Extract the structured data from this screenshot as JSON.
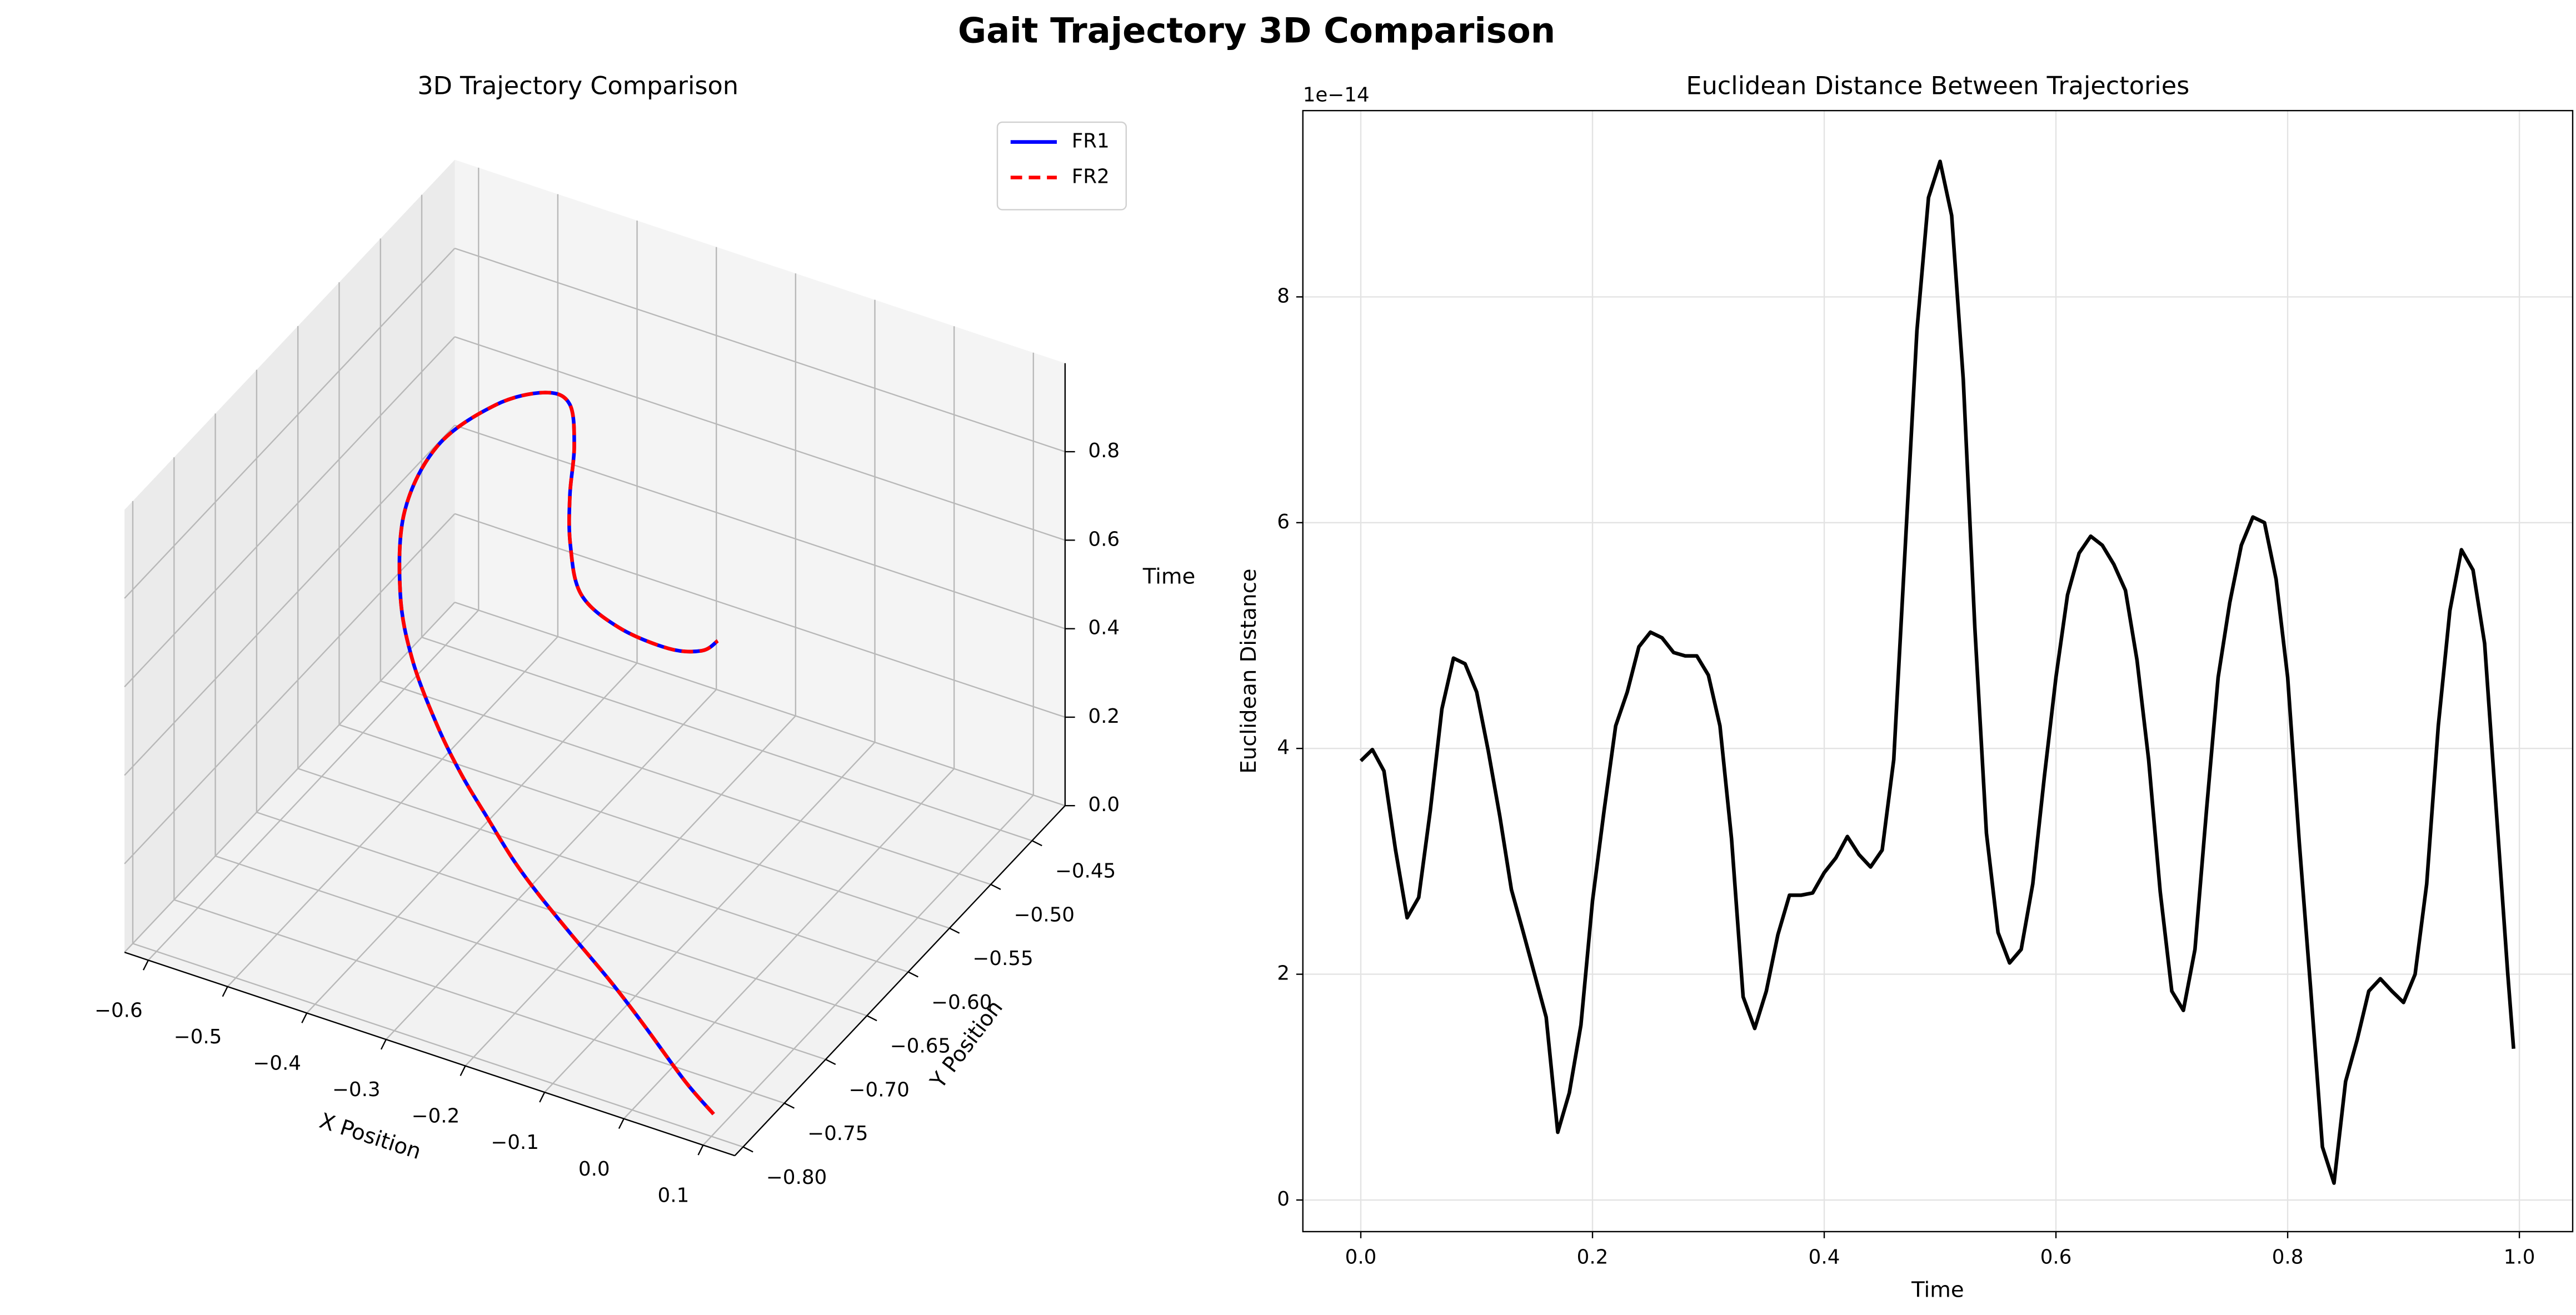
{
  "title": "Gait Trajectory 3D Comparison",
  "chart_data": [
    {
      "type": "line3d",
      "title": "3D Trajectory Comparison",
      "xlabel": "X Position",
      "ylabel": "Y Position",
      "zlabel": "Time",
      "xlim": [
        -0.63,
        0.14
      ],
      "ylim": [
        -0.81,
        -0.41
      ],
      "zlim": [
        0,
        1
      ],
      "xticks": [
        {
          "value": -0.6,
          "label": "−0.6"
        },
        {
          "value": -0.5,
          "label": "−0.5"
        },
        {
          "value": -0.4,
          "label": "−0.4"
        },
        {
          "value": -0.3,
          "label": "−0.3"
        },
        {
          "value": -0.2,
          "label": "−0.2"
        },
        {
          "value": -0.1,
          "label": "−0.1"
        },
        {
          "value": 0,
          "label": "0.0"
        },
        0.1
      ],
      "yticks": [
        {
          "value": -0.8,
          "label": "−0.80"
        },
        {
          "value": -0.75,
          "label": "−0.75"
        },
        {
          "value": -0.7,
          "label": "−0.70"
        },
        {
          "value": -0.65,
          "label": "−0.65"
        },
        {
          "value": -0.6,
          "label": "−0.60"
        },
        {
          "value": -0.55,
          "label": "−0.55"
        },
        {
          "value": -0.5,
          "label": "−0.50"
        },
        {
          "value": -0.45,
          "label": "−0.45"
        }
      ],
      "zticks": [
        {
          "value": 0,
          "label": "0.0"
        },
        0.2,
        0.4,
        0.6,
        0.8
      ],
      "grid": true,
      "legend": "upper right",
      "series": [
        {
          "name": "FR1",
          "color": "#0000ff",
          "linestyle": "solid",
          "x": [
            0.082,
            0.042,
            -0.034,
            -0.086,
            -0.154,
            -0.206,
            -0.243,
            -0.287,
            -0.332,
            -0.384,
            -0.451,
            -0.506,
            -0.56,
            -0.571,
            -0.536,
            -0.483,
            -0.432,
            -0.373,
            -0.316,
            -0.254,
            -0.182,
            -0.099,
            -0.015,
            0.035,
            0.058
          ],
          "y": [
            -0.78,
            -0.776,
            -0.754,
            -0.743,
            -0.728,
            -0.718,
            -0.712,
            -0.7,
            -0.687,
            -0.667,
            -0.633,
            -0.595,
            -0.538,
            -0.487,
            -0.451,
            -0.442,
            -0.461,
            -0.512,
            -0.572,
            -0.631,
            -0.687,
            -0.721,
            -0.741,
            -0.749,
            -0.752
          ],
          "z": [
            0,
            0.042,
            0.083,
            0.125,
            0.167,
            0.208,
            0.25,
            0.292,
            0.333,
            0.375,
            0.417,
            0.458,
            0.5,
            0.542,
            0.583,
            0.625,
            0.667,
            0.708,
            0.75,
            0.792,
            0.833,
            0.875,
            0.917,
            0.958,
            1
          ]
        },
        {
          "name": "FR2",
          "color": "#ff0000",
          "linestyle": "dashed",
          "x": [
            0.082,
            0.042,
            -0.034,
            -0.086,
            -0.154,
            -0.206,
            -0.243,
            -0.287,
            -0.332,
            -0.384,
            -0.451,
            -0.506,
            -0.56,
            -0.571,
            -0.536,
            -0.483,
            -0.432,
            -0.373,
            -0.316,
            -0.254,
            -0.182,
            -0.099,
            -0.015,
            0.035,
            0.058
          ],
          "y": [
            -0.78,
            -0.776,
            -0.754,
            -0.743,
            -0.728,
            -0.718,
            -0.712,
            -0.7,
            -0.687,
            -0.667,
            -0.633,
            -0.595,
            -0.538,
            -0.487,
            -0.451,
            -0.442,
            -0.461,
            -0.512,
            -0.572,
            -0.631,
            -0.687,
            -0.721,
            -0.741,
            -0.749,
            -0.752
          ],
          "z": [
            0,
            0.042,
            0.083,
            0.125,
            0.167,
            0.208,
            0.25,
            0.292,
            0.333,
            0.375,
            0.417,
            0.458,
            0.5,
            0.542,
            0.583,
            0.625,
            0.667,
            0.708,
            0.75,
            0.792,
            0.833,
            0.875,
            0.917,
            0.958,
            1
          ]
        }
      ]
    },
    {
      "type": "line",
      "title": "Euclidean Distance Between Trajectories",
      "xlabel": "Time",
      "ylabel": "Euclidean Distance",
      "y_offset_label": "1e−14",
      "xlim": [
        -0.05,
        1.046
      ],
      "ylim": [
        -0.28,
        9.65
      ],
      "xticks": [
        {
          "value": 0,
          "label": "0.0"
        },
        0.2,
        0.4,
        0.6,
        0.8,
        {
          "value": 1,
          "label": "1.0"
        }
      ],
      "yticks": [
        0,
        2,
        4,
        6,
        8
      ],
      "grid": true,
      "x": [
        0,
        0.01,
        0.02,
        0.03,
        0.04,
        0.05,
        0.06,
        0.07,
        0.08,
        0.09,
        0.1,
        0.11,
        0.12,
        0.13,
        0.14,
        0.15,
        0.16,
        0.17,
        0.18,
        0.19,
        0.2,
        0.21,
        0.22,
        0.23,
        0.24,
        0.25,
        0.26,
        0.27,
        0.28,
        0.29,
        0.3,
        0.31,
        0.32,
        0.33,
        0.34,
        0.35,
        0.36,
        0.37,
        0.38,
        0.39,
        0.4,
        0.41,
        0.42,
        0.43,
        0.44,
        0.45,
        0.46,
        0.47,
        0.48,
        0.49,
        0.5,
        0.51,
        0.52,
        0.53,
        0.54,
        0.55,
        0.56,
        0.57,
        0.58,
        0.59,
        0.6,
        0.61,
        0.62,
        0.63,
        0.64,
        0.65,
        0.66,
        0.67,
        0.68,
        0.69,
        0.7,
        0.71,
        0.72,
        0.73,
        0.74,
        0.75,
        0.76,
        0.77,
        0.78,
        0.79,
        0.8,
        0.81,
        0.82,
        0.83,
        0.84,
        0.85,
        0.86,
        0.87,
        0.88,
        0.89,
        0.9,
        0.91,
        0.92,
        0.93,
        0.94,
        0.95,
        0.96,
        0.97,
        0.98,
        0.99,
        0.995
      ],
      "series": [
        {
          "name": "Distance",
          "color": "#000000",
          "values": [
            3.89,
            3.99,
            3.8,
            3.1,
            2.5,
            2.68,
            3.45,
            4.35,
            4.8,
            4.75,
            4.5,
            3.98,
            3.4,
            2.75,
            2.38,
            2.0,
            1.62,
            0.6,
            0.95,
            1.55,
            2.65,
            3.45,
            4.2,
            4.5,
            4.9,
            5.03,
            4.98,
            4.85,
            4.82,
            4.82,
            4.65,
            4.2,
            3.2,
            1.8,
            1.52,
            1.85,
            2.35,
            2.7,
            2.7,
            2.72,
            2.9,
            3.03,
            3.22,
            3.06,
            2.95,
            3.1,
            3.9,
            5.8,
            7.7,
            8.88,
            9.2,
            8.72,
            7.27,
            5.07,
            3.25,
            2.37,
            2.1,
            2.22,
            2.8,
            3.75,
            4.63,
            5.36,
            5.73,
            5.88,
            5.8,
            5.63,
            5.4,
            4.78,
            3.9,
            2.73,
            1.85,
            1.68,
            2.22,
            3.46,
            4.63,
            5.29,
            5.8,
            6.05,
            6.0,
            5.5,
            4.63,
            3.17,
            1.85,
            0.47,
            0.15,
            1.05,
            1.42,
            1.85,
            1.96,
            1.85,
            1.75,
            2.0,
            2.8,
            4.2,
            5.22,
            5.76,
            5.58,
            4.93,
            3.46,
            2.0,
            1.34
          ]
        }
      ]
    }
  ]
}
